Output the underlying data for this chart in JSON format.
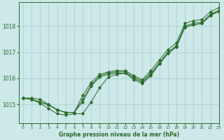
{
  "title": "Graphe pression niveau de la mer (hPa)",
  "bg_color": "#cce8e8",
  "grid_color": "#aacccc",
  "line_color": "#2d6b2d",
  "xlim": [
    -0.5,
    23
  ],
  "ylim": [
    1014.3,
    1018.9
  ],
  "yticks": [
    1015,
    1016,
    1017,
    1018
  ],
  "xticks": [
    0,
    1,
    2,
    3,
    4,
    5,
    6,
    7,
    8,
    9,
    10,
    11,
    12,
    13,
    14,
    15,
    16,
    17,
    18,
    19,
    20,
    21,
    22,
    23
  ],
  "series1": [
    1015.25,
    1015.25,
    1015.2,
    1015.0,
    1014.8,
    1014.7,
    1014.7,
    1015.35,
    1015.85,
    1016.15,
    1016.25,
    1016.3,
    1016.3,
    1016.1,
    1015.95,
    1016.3,
    1016.7,
    1017.1,
    1017.35,
    1018.1,
    1018.2,
    1018.25,
    1018.55,
    1018.7
  ],
  "series2": [
    1015.25,
    1015.2,
    1015.1,
    1015.0,
    1014.8,
    1014.7,
    1014.7,
    1015.2,
    1015.75,
    1016.1,
    1016.2,
    1016.25,
    1016.25,
    1016.05,
    1015.9,
    1016.2,
    1016.6,
    1017.0,
    1017.25,
    1018.0,
    1018.1,
    1018.15,
    1018.45,
    1018.6
  ],
  "series3": [
    1015.25,
    1015.2,
    1015.1,
    1014.98,
    1014.8,
    1014.7,
    1014.7,
    1015.1,
    1015.7,
    1016.05,
    1016.15,
    1016.2,
    1016.2,
    1016.0,
    1015.85,
    1016.15,
    1016.55,
    1016.95,
    1017.2,
    1017.95,
    1018.05,
    1018.1,
    1018.4,
    1018.55
  ],
  "series_low": [
    1015.25,
    1015.2,
    1015.05,
    1014.85,
    1014.65,
    1014.6,
    1014.65,
    1014.65,
    1015.1,
    1015.65,
    1016.05,
    1016.15,
    1016.2,
    1015.95,
    1015.8,
    1016.1,
    1016.55,
    1016.95,
    1017.2,
    1017.95,
    1018.05,
    1018.1,
    1018.4,
    1018.6
  ]
}
